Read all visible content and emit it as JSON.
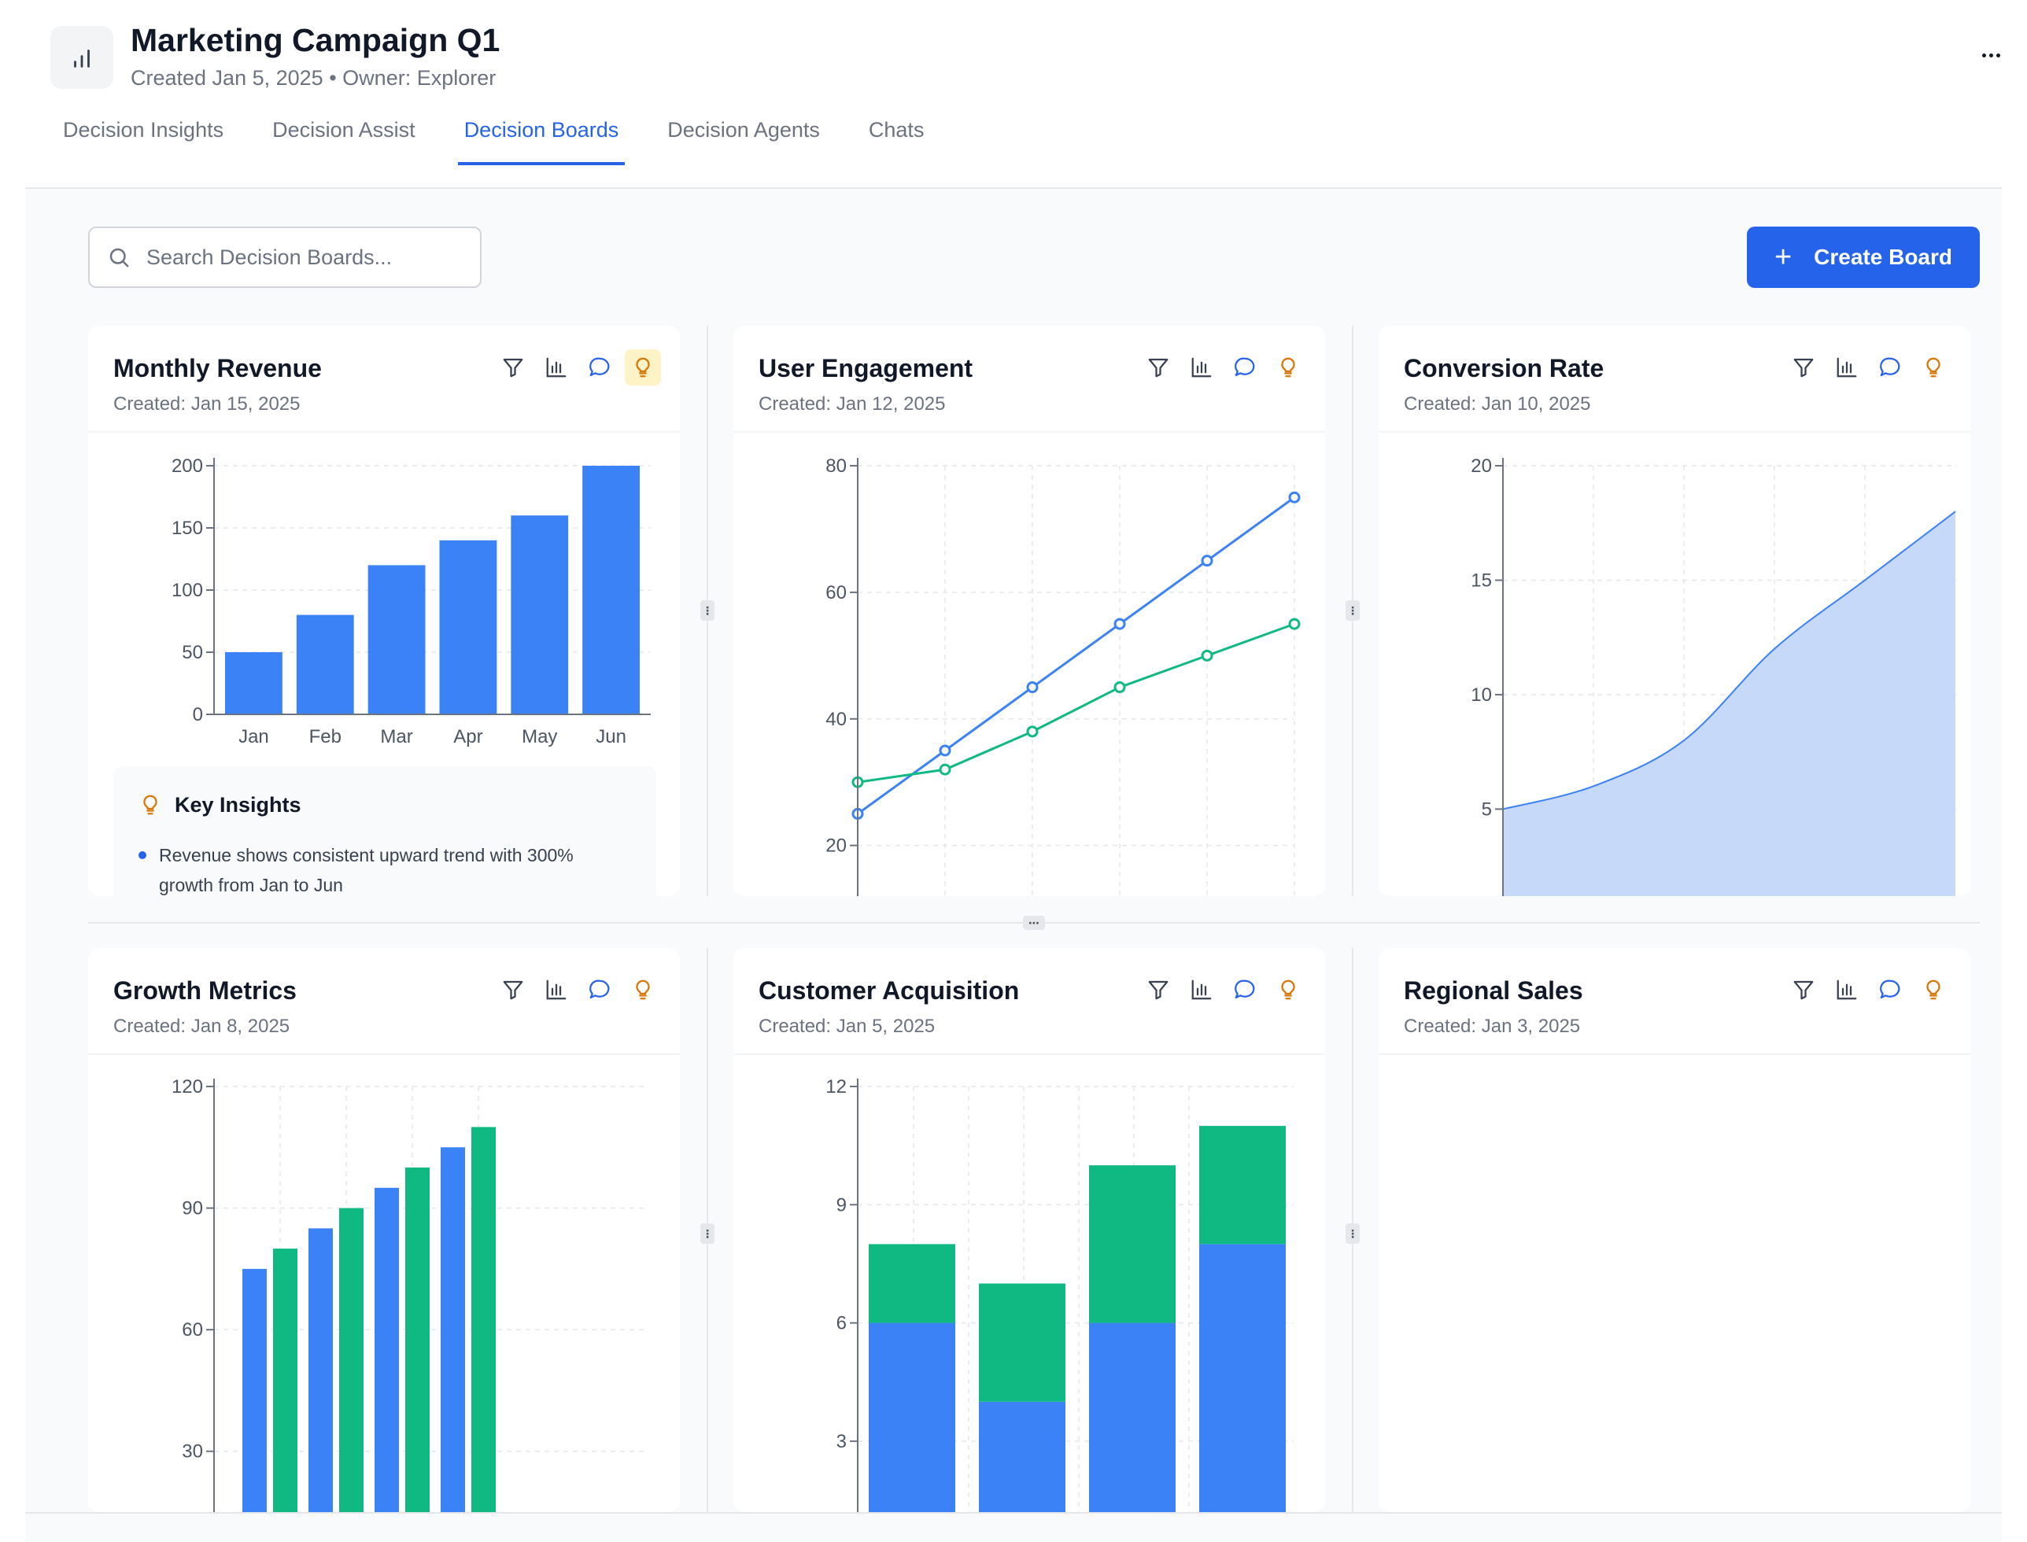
{
  "header": {
    "title": "Marketing Campaign Q1",
    "created": "Created Jan 5, 2025",
    "separator": "•",
    "owner": "Owner: Explorer"
  },
  "tabs": [
    {
      "label": "Decision Insights",
      "active": false
    },
    {
      "label": "Decision Assist",
      "active": false
    },
    {
      "label": "Decision Boards",
      "active": true
    },
    {
      "label": "Decision Agents",
      "active": false
    },
    {
      "label": "Chats",
      "active": false
    }
  ],
  "toolbar": {
    "search_placeholder": "Search Decision Boards...",
    "create_label": "Create Board"
  },
  "colors": {
    "primary": "#2563eb",
    "blue": "#3b82f6",
    "green": "#10b981",
    "area_fill": "#c7d9f8",
    "amber": "#d97706"
  },
  "cards": [
    {
      "title": "Monthly Revenue",
      "date": "Created: Jan 15, 2025",
      "insights_highlighted": true
    },
    {
      "title": "User Engagement",
      "date": "Created: Jan 12, 2025"
    },
    {
      "title": "Conversion Rate",
      "date": "Created: Jan 10, 2025"
    },
    {
      "title": "Growth Metrics",
      "date": "Created: Jan 8, 2025"
    },
    {
      "title": "Customer Acquisition",
      "date": "Created: Jan 5, 2025"
    },
    {
      "title": "Regional Sales",
      "date": "Created: Jan 3, 2025"
    }
  ],
  "insights": {
    "title": "Key Insights",
    "items": [
      "Revenue shows consistent upward trend with 300% growth from Jan to Jun"
    ]
  },
  "chart_data": [
    {
      "type": "bar",
      "card": "Monthly Revenue",
      "categories": [
        "Jan",
        "Feb",
        "Mar",
        "Apr",
        "May",
        "Jun"
      ],
      "values": [
        50,
        80,
        120,
        140,
        160,
        200
      ],
      "ylim": [
        0,
        200
      ],
      "yticks": [
        0,
        50,
        100,
        150,
        200
      ]
    },
    {
      "type": "line",
      "card": "User Engagement",
      "series": [
        {
          "values": [
            25,
            35,
            45,
            55,
            65,
            75
          ],
          "color": "#3b82f6"
        },
        {
          "values": [
            30,
            32,
            38,
            45,
            50,
            55
          ],
          "color": "#10b981"
        }
      ],
      "ylim": [
        12,
        80
      ],
      "yticks": [
        20,
        40,
        60,
        80
      ]
    },
    {
      "type": "area",
      "card": "Conversion Rate",
      "values": [
        5,
        6,
        8,
        12,
        15,
        18
      ],
      "ylim": [
        1.2,
        20
      ],
      "yticks": [
        5,
        10,
        15,
        20
      ]
    },
    {
      "type": "bar",
      "card": "Growth Metrics",
      "series": [
        {
          "values": [
            75,
            85,
            95,
            105
          ],
          "color": "#3b82f6"
        },
        {
          "values": [
            80,
            90,
            100,
            110
          ],
          "color": "#10b981"
        }
      ],
      "ylim": [
        15,
        120
      ],
      "yticks": [
        30,
        60,
        90,
        120
      ]
    },
    {
      "type": "bar",
      "card": "Customer Acquisition",
      "stacked": true,
      "series": [
        {
          "values": [
            6,
            4,
            6,
            8
          ],
          "color": "#3b82f6"
        },
        {
          "values": [
            2,
            3,
            4,
            3
          ],
          "color": "#10b981"
        }
      ],
      "ylim": [
        1.2,
        12
      ],
      "yticks": [
        3,
        6,
        9,
        12
      ]
    }
  ]
}
